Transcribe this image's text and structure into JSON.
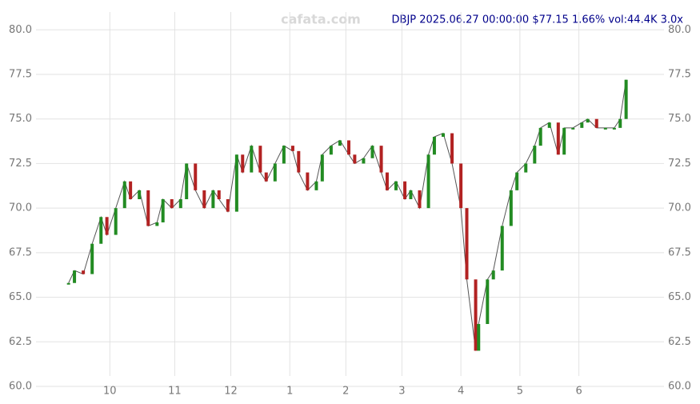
{
  "chart_data": {
    "type": "line",
    "title": "DBJP 2025.06.27 00:00:00 $77.15 1.66% vol:44.4K 3.0x",
    "watermark": "cafata.com",
    "x": [
      0,
      2,
      5,
      8,
      11,
      13,
      16,
      19,
      21,
      24,
      27,
      30,
      32,
      35,
      38,
      40,
      43,
      46,
      49,
      51,
      54,
      57,
      59,
      62,
      65,
      67,
      70,
      73,
      76,
      78,
      81,
      84,
      86,
      89,
      92,
      95,
      97,
      100,
      103,
      106,
      108,
      111,
      114,
      116,
      119,
      122,
      124,
      127,
      130,
      133,
      135,
      138,
      139,
      142,
      144,
      147,
      150,
      152,
      155,
      158,
      160,
      163,
      166,
      168,
      171,
      174,
      176,
      179,
      182,
      185,
      187,
      189
    ],
    "series": [
      {
        "name": "DBJP",
        "color": "#555555",
        "values": [
          65.8,
          66.5,
          66.3,
          68.0,
          69.5,
          68.5,
          70.0,
          71.5,
          70.5,
          71.0,
          69.0,
          69.2,
          70.5,
          70.0,
          70.5,
          72.5,
          71.0,
          70.0,
          71.0,
          70.5,
          69.8,
          73.0,
          72.0,
          73.5,
          72.0,
          71.5,
          72.5,
          73.5,
          73.2,
          72.0,
          71.0,
          71.5,
          73.0,
          73.5,
          73.8,
          73.0,
          72.5,
          72.8,
          73.5,
          72.0,
          71.0,
          71.5,
          70.5,
          71.0,
          70.0,
          73.0,
          74.0,
          74.2,
          72.5,
          70.0,
          66.0,
          62.0,
          63.5,
          66.0,
          66.5,
          69.0,
          71.0,
          72.0,
          72.5,
          73.5,
          74.5,
          74.8,
          73.0,
          74.5,
          74.5,
          74.8,
          75.0,
          74.5,
          74.5,
          74.5,
          75.0,
          77.2
        ]
      }
    ],
    "up_color": "#228b22",
    "down_color": "#b22222",
    "xlim": [
      -1,
      191
    ],
    "ylim": [
      60,
      81
    ],
    "xticks": [
      {
        "value": 14,
        "label": "10"
      },
      {
        "value": 36,
        "label": "11"
      },
      {
        "value": 55,
        "label": "12"
      },
      {
        "value": 75,
        "label": "1"
      },
      {
        "value": 94,
        "label": "2"
      },
      {
        "value": 113,
        "label": "3"
      },
      {
        "value": 133,
        "label": "4"
      },
      {
        "value": 153,
        "label": "5"
      },
      {
        "value": 173,
        "label": "6"
      }
    ],
    "yticks": [
      {
        "value": 60,
        "label": "60.0"
      },
      {
        "value": 62.5,
        "label": "62.5"
      },
      {
        "value": 65,
        "label": "65.0"
      },
      {
        "value": 67.5,
        "label": "67.5"
      },
      {
        "value": 70,
        "label": "70.0"
      },
      {
        "value": 72.5,
        "label": "72.5"
      },
      {
        "value": 75,
        "label": "75.0"
      },
      {
        "value": 77.5,
        "label": "77.5"
      },
      {
        "value": 80,
        "label": "80.0"
      }
    ],
    "grid": true
  }
}
